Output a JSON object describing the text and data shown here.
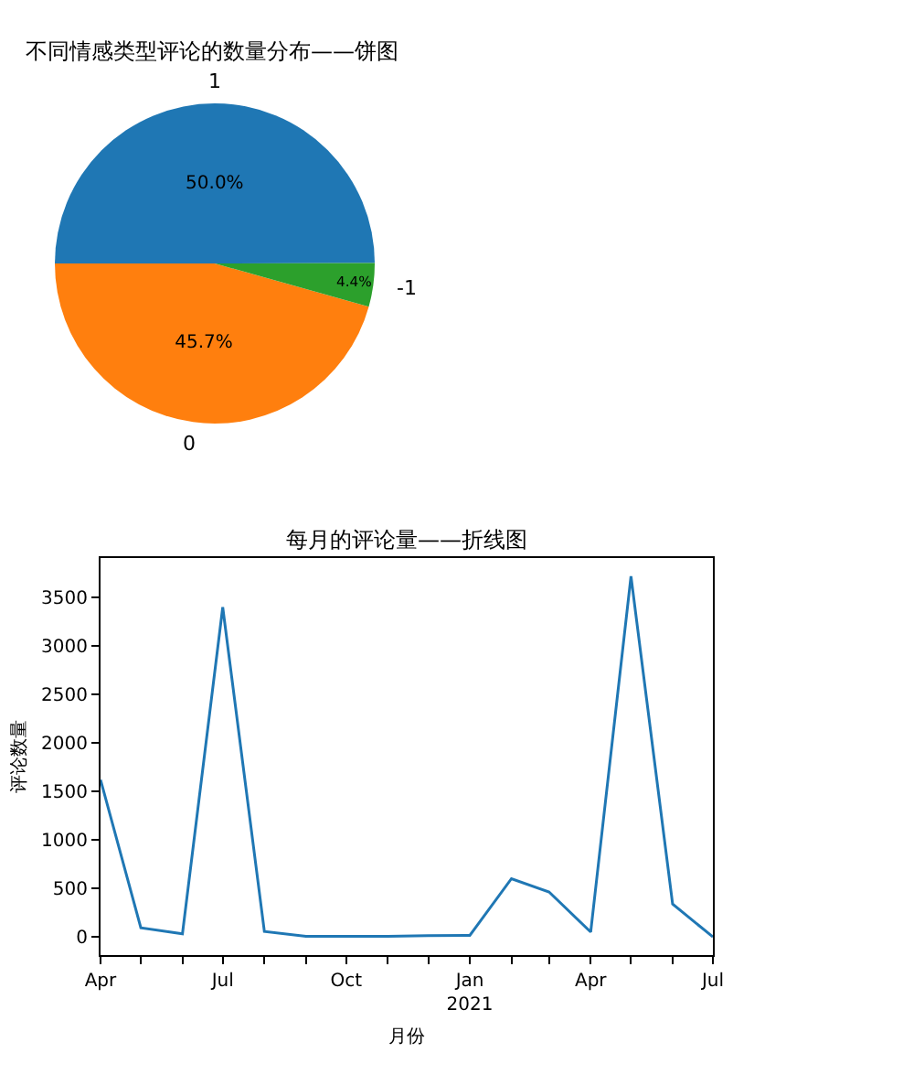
{
  "chart_data": [
    {
      "type": "pie",
      "title": "不同情感类型评论的数量分布——饼图",
      "categories": [
        "1",
        "0",
        "-1"
      ],
      "values": [
        50.0,
        45.7,
        4.4
      ],
      "colors": [
        "#1f77b4",
        "#ff7f0e",
        "#2ca02c"
      ],
      "value_labels": [
        "50.0%",
        "45.7%",
        "4.4%"
      ],
      "legend": false
    },
    {
      "type": "line",
      "title": "每月的评论量——折线图",
      "xlabel": "月份",
      "ylabel": "评论数量",
      "x": [
        "2020-04",
        "2020-05",
        "2020-06",
        "2020-07",
        "2020-08",
        "2020-09",
        "2020-10",
        "2020-11",
        "2020-12",
        "2021-01",
        "2021-02",
        "2021-03",
        "2021-04",
        "2021-05",
        "2021-06",
        "2021-07"
      ],
      "series": [
        {
          "color": "#1f77b4",
          "values": [
            1620,
            94,
            31,
            3400,
            56,
            6,
            5,
            5,
            12,
            15,
            600,
            463,
            50,
            3720,
            338,
            0
          ]
        }
      ],
      "xlim": [
        "2020-04",
        "2021-07"
      ],
      "xticks": [
        {
          "value": "2020-04",
          "label": "Apr"
        },
        {
          "value": "2020-05",
          "label": null
        },
        {
          "value": "2020-06",
          "label": null
        },
        {
          "value": "2020-07",
          "label": "Jul"
        },
        {
          "value": "2020-08",
          "label": null
        },
        {
          "value": "2020-09",
          "label": null
        },
        {
          "value": "2020-10",
          "label": "Oct"
        },
        {
          "value": "2020-11",
          "label": null
        },
        {
          "value": "2020-12",
          "label": null
        },
        {
          "value": "2021-01",
          "label": "Jan\n2021"
        },
        {
          "value": "2021-02",
          "label": null
        },
        {
          "value": "2021-03",
          "label": null
        },
        {
          "value": "2021-04",
          "label": "Apr"
        },
        {
          "value": "2021-05",
          "label": null
        },
        {
          "value": "2021-06",
          "label": null
        },
        {
          "value": "2021-07",
          "label": "Jul"
        }
      ],
      "ylim": [
        -188,
        3907
      ],
      "yticks": [
        0,
        500,
        1000,
        1500,
        2000,
        2500,
        3000,
        3500
      ],
      "grid": false,
      "legend": false,
      "line_style": "solid"
    }
  ]
}
